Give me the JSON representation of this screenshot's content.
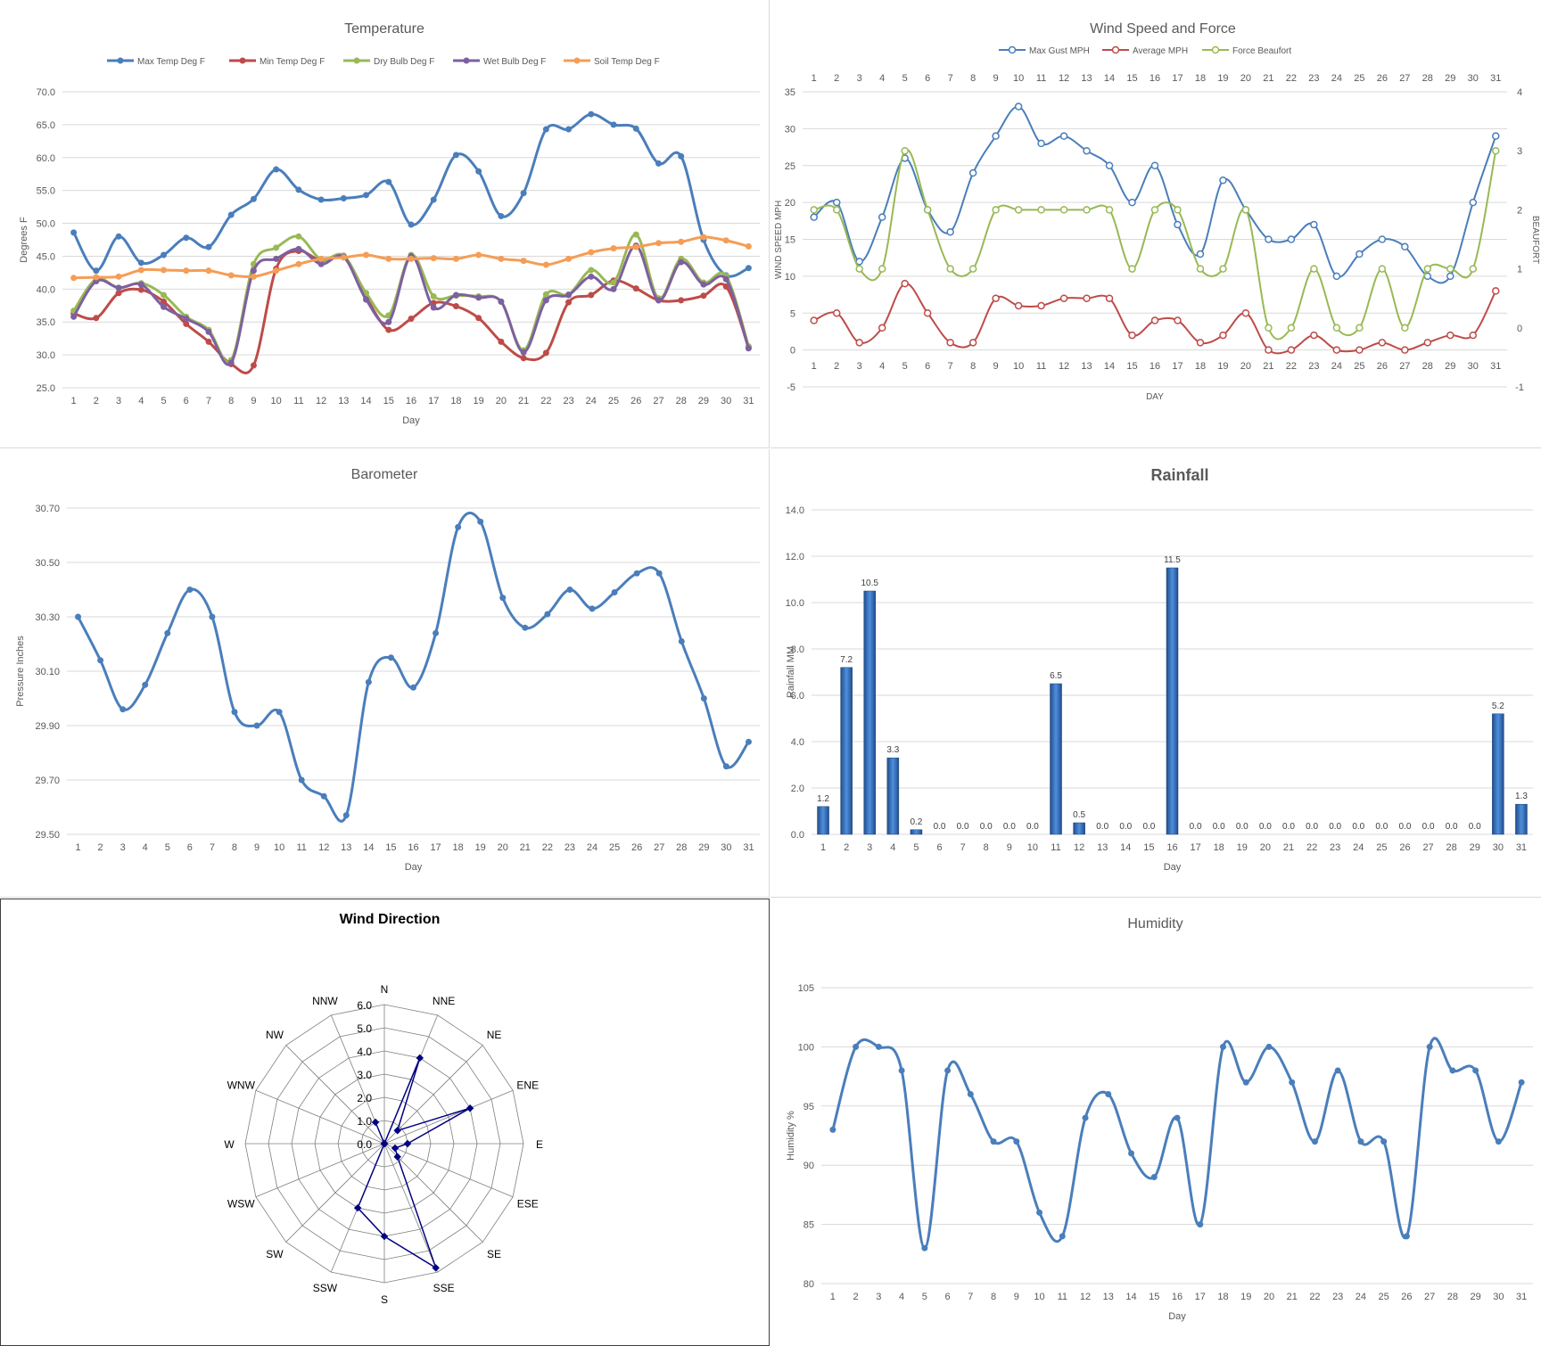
{
  "colors": {
    "max_temp": "#4a7ebb",
    "min_temp": "#be4b48",
    "dry_bulb": "#98b954",
    "wet_bulb": "#7d60a0",
    "soil_temp": "#f59d56",
    "gust": "#4a7ebb",
    "avg": "#be4b48",
    "beaufort": "#98b954",
    "barometer": "#4a7ebb",
    "rain_bar": "#2f69b5",
    "radar": "#000080",
    "humidity": "#4a7ebb",
    "grid": "#d9d9d9",
    "axis_text": "#595959"
  },
  "chart_data": [
    {
      "id": "temperature",
      "type": "line",
      "title": "Temperature",
      "xlabel": "Day",
      "ylabel": "Degrees F",
      "ylim": [
        25,
        70
      ],
      "yticks": [
        "25.0",
        "30.0",
        "35.0",
        "40.0",
        "45.0",
        "50.0",
        "55.0",
        "60.0",
        "65.0",
        "70.0"
      ],
      "legend": "top",
      "grid": true,
      "x": [
        1,
        2,
        3,
        4,
        5,
        6,
        7,
        8,
        9,
        10,
        11,
        12,
        13,
        14,
        15,
        16,
        17,
        18,
        19,
        20,
        21,
        22,
        23,
        24,
        25,
        26,
        27,
        28,
        29,
        30,
        31
      ],
      "series": [
        {
          "name": "Max Temp Deg F",
          "color_key": "max_temp",
          "values": [
            48.6,
            42.8,
            48.0,
            44.0,
            45.2,
            47.8,
            46.4,
            51.3,
            53.7,
            58.2,
            55.1,
            53.6,
            53.8,
            54.3,
            56.3,
            49.8,
            53.6,
            60.4,
            57.9,
            51.1,
            54.6,
            64.3,
            64.3,
            66.6,
            65.0,
            64.4,
            59.1,
            60.2,
            47.5,
            42.1,
            43.2
          ]
        },
        {
          "name": "Min Temp Deg F",
          "color_key": "min_temp",
          "values": [
            36.3,
            35.6,
            39.4,
            39.9,
            38.1,
            34.7,
            32.0,
            28.6,
            28.4,
            43.1,
            45.8,
            44.3,
            44.9,
            38.8,
            33.8,
            35.5,
            37.9,
            37.4,
            35.6,
            32.0,
            29.5,
            30.3,
            38.0,
            39.1,
            41.3,
            40.1,
            38.3,
            38.3,
            39.0,
            40.4,
            31.1
          ]
        },
        {
          "name": "Dry Bulb Deg F",
          "color_key": "dry_bulb",
          "values": [
            36.7,
            41.5,
            40.2,
            40.9,
            39.1,
            35.8,
            33.8,
            29.2,
            43.8,
            46.3,
            48.0,
            44.5,
            45.1,
            39.4,
            36.0,
            45.2,
            38.9,
            39.0,
            38.9,
            38.1,
            30.7,
            39.2,
            39.2,
            42.9,
            41.0,
            48.3,
            38.6,
            44.6,
            41.0,
            42.0,
            31.3
          ]
        },
        {
          "name": "Wet Bulb Deg F",
          "color_key": "wet_bulb",
          "values": [
            35.8,
            41.2,
            40.2,
            40.7,
            37.3,
            35.5,
            33.5,
            28.8,
            42.8,
            44.6,
            46.1,
            43.8,
            44.9,
            38.4,
            35.0,
            45.0,
            37.2,
            39.1,
            38.7,
            38.1,
            30.4,
            38.3,
            39.1,
            41.9,
            40.0,
            46.6,
            38.3,
            44.1,
            40.7,
            41.5,
            31.0
          ]
        },
        {
          "name": "Soil Temp Deg F",
          "color_key": "soil_temp",
          "values": [
            41.7,
            41.8,
            41.9,
            42.9,
            42.9,
            42.8,
            42.8,
            42.1,
            41.9,
            42.8,
            43.8,
            44.6,
            44.8,
            45.2,
            44.6,
            44.6,
            44.7,
            44.6,
            45.2,
            44.6,
            44.3,
            43.7,
            44.6,
            45.6,
            46.2,
            46.4,
            47.0,
            47.2,
            47.9,
            47.4,
            46.5
          ]
        }
      ]
    },
    {
      "id": "wind",
      "type": "line",
      "title": "Wind Speed and Force",
      "xlabel": "DAY",
      "ylabel": "WIND SPEED MPH",
      "y2label": "BEAUFORT",
      "ylim": [
        -5,
        35
      ],
      "y2lim": [
        -1,
        4
      ],
      "yticks": [
        "-5",
        "0",
        "5",
        "10",
        "15",
        "20",
        "25",
        "30",
        "35"
      ],
      "y2ticks": [
        "-1",
        "0",
        "1",
        "2",
        "3",
        "4"
      ],
      "legend": "top",
      "grid": true,
      "x": [
        1,
        2,
        3,
        4,
        5,
        6,
        7,
        8,
        9,
        10,
        11,
        12,
        13,
        14,
        15,
        16,
        17,
        18,
        19,
        20,
        21,
        22,
        23,
        24,
        25,
        26,
        27,
        28,
        29,
        30,
        31
      ],
      "series": [
        {
          "name": "Max Gust MPH",
          "color_key": "gust",
          "axis": "left",
          "values": [
            18,
            20,
            12,
            18,
            26,
            19,
            16,
            24,
            29,
            33,
            28,
            29,
            27,
            25,
            20,
            25,
            17,
            13,
            23,
            19,
            15,
            15,
            17,
            10,
            13,
            15,
            14,
            10,
            10,
            20,
            29
          ]
        },
        {
          "name": "Average MPH",
          "color_key": "avg",
          "axis": "left",
          "values": [
            4,
            5,
            1,
            3,
            9,
            5,
            1,
            1,
            7,
            6,
            6,
            7,
            7,
            7,
            2,
            4,
            4,
            1,
            2,
            5,
            0,
            0,
            2,
            0,
            0,
            1,
            0,
            1,
            2,
            2,
            8
          ]
        },
        {
          "name": "Force Beaufort",
          "color_key": "beaufort",
          "axis": "right",
          "values": [
            2,
            2,
            1,
            1,
            3,
            2,
            1,
            1,
            2,
            2,
            2,
            2,
            2,
            2,
            1,
            2,
            2,
            1,
            1,
            2,
            0,
            0,
            1,
            0,
            0,
            1,
            0,
            1,
            1,
            1,
            3
          ]
        }
      ]
    },
    {
      "id": "barometer",
      "type": "line",
      "title": "Barometer",
      "xlabel": "Day",
      "ylabel": "Pressure Inches",
      "ylim": [
        29.5,
        30.7
      ],
      "yticks": [
        "29.50",
        "29.70",
        "29.90",
        "30.10",
        "30.30",
        "30.50",
        "30.70"
      ],
      "grid": true,
      "x": [
        1,
        2,
        3,
        4,
        5,
        6,
        7,
        8,
        9,
        10,
        11,
        12,
        13,
        14,
        15,
        16,
        17,
        18,
        19,
        20,
        21,
        22,
        23,
        24,
        25,
        26,
        27,
        28,
        29,
        30,
        31
      ],
      "series": [
        {
          "name": "",
          "color_key": "barometer",
          "values": [
            30.3,
            30.14,
            29.96,
            30.05,
            30.24,
            30.4,
            30.3,
            29.95,
            29.9,
            29.95,
            29.7,
            29.64,
            29.57,
            30.06,
            30.15,
            30.04,
            30.24,
            30.63,
            30.65,
            30.37,
            30.26,
            30.31,
            30.4,
            30.33,
            30.39,
            30.46,
            30.46,
            30.21,
            30.0,
            29.75,
            29.84
          ]
        }
      ]
    },
    {
      "id": "rainfall",
      "type": "bar",
      "title": "Rainfall",
      "xlabel": "Day",
      "ylabel": "Rainfall MM",
      "ylim": [
        0,
        14
      ],
      "yticks": [
        "0.0",
        "2.0",
        "4.0",
        "6.0",
        "8.0",
        "10.0",
        "12.0",
        "14.0"
      ],
      "grid": true,
      "categories": [
        "1",
        "2",
        "3",
        "4",
        "5",
        "6",
        "7",
        "8",
        "9",
        "10",
        "11",
        "12",
        "13",
        "14",
        "15",
        "16",
        "17",
        "18",
        "19",
        "20",
        "21",
        "22",
        "23",
        "24",
        "25",
        "26",
        "27",
        "28",
        "29",
        "30",
        "31"
      ],
      "values": [
        1.2,
        7.2,
        10.5,
        3.3,
        0.2,
        0.0,
        0.0,
        0.0,
        0.0,
        0.0,
        6.5,
        0.5,
        0.0,
        0.0,
        0.0,
        11.5,
        0.0,
        0.0,
        0.0,
        0.0,
        0.0,
        0.0,
        0.0,
        0.0,
        0.0,
        0.0,
        0.0,
        0.0,
        0.0,
        5.2,
        1.3
      ],
      "labels": [
        "1.2",
        "7.2",
        "10.5",
        "3.3",
        "0.2",
        "0.0",
        "0.0",
        "0.0",
        "0.0",
        "0.0",
        "6.5",
        "0.5",
        "0.0",
        "0.0",
        "0.0",
        "11.5",
        "0.0",
        "0.0",
        "0.0",
        "0.0",
        "0.0",
        "0.0",
        "0.0",
        "0.0",
        "0.0",
        "0.0",
        "0.0",
        "0.0",
        "0.0",
        "5.2",
        "1.3"
      ]
    },
    {
      "id": "wind_direction",
      "type": "radar",
      "title": "Wind Direction",
      "rlim": [
        0,
        6
      ],
      "rticks": [
        "0.0",
        "1.0",
        "2.0",
        "3.0",
        "4.0",
        "5.0",
        "6.0"
      ],
      "categories": [
        "N",
        "NNE",
        "NE",
        "ENE",
        "E",
        "ESE",
        "SE",
        "SSE",
        "S",
        "SSW",
        "SW",
        "WSW",
        "W",
        "WNW",
        "NW",
        "NNW"
      ],
      "values": [
        0,
        4.0,
        0.8,
        4.0,
        1.0,
        0.5,
        0.8,
        5.8,
        4.0,
        3.0,
        0,
        0,
        0,
        0,
        0,
        1.0
      ]
    },
    {
      "id": "humidity",
      "type": "line",
      "title": "Humidity",
      "xlabel": "Day",
      "ylabel": "Humidity %",
      "ylim": [
        80,
        105
      ],
      "yticks": [
        "80",
        "85",
        "90",
        "95",
        "100",
        "105"
      ],
      "grid": true,
      "x": [
        1,
        2,
        3,
        4,
        5,
        6,
        7,
        8,
        9,
        10,
        11,
        12,
        13,
        14,
        15,
        16,
        17,
        18,
        19,
        20,
        21,
        22,
        23,
        24,
        25,
        26,
        27,
        28,
        29,
        30,
        31
      ],
      "series": [
        {
          "name": "",
          "color_key": "humidity",
          "values": [
            93,
            100,
            100,
            98,
            83,
            98,
            96,
            92,
            92,
            86,
            84,
            94,
            96,
            91,
            89,
            94,
            85,
            100,
            97,
            100,
            97,
            92,
            98,
            92,
            92,
            84,
            100,
            98,
            98,
            92,
            97
          ]
        }
      ]
    }
  ]
}
